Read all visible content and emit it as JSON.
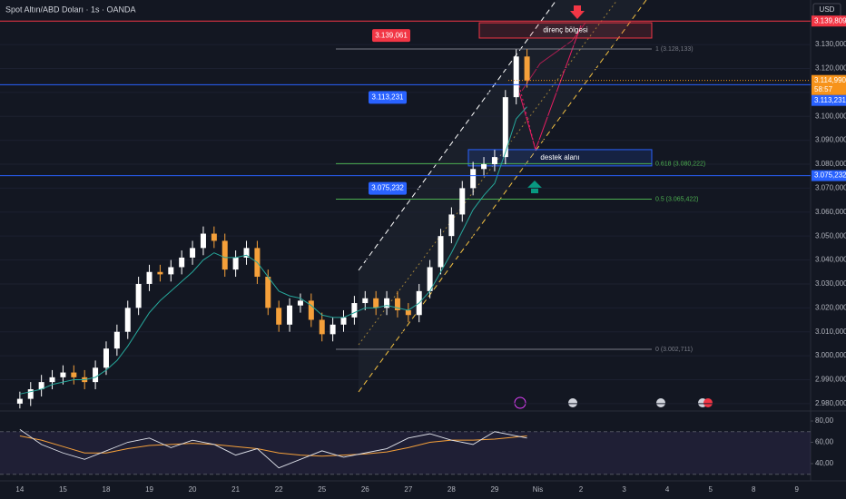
{
  "chart_data": {
    "type": "candlestick",
    "title": "Spot Altın/ABD Doları · 1s · OANDA",
    "currency": "USD",
    "categories": [
      "14",
      "15",
      "18",
      "19",
      "20",
      "21",
      "22",
      "25",
      "26",
      "27",
      "28",
      "29",
      "Nis",
      "2",
      "3",
      "4",
      "5",
      "8",
      "9"
    ],
    "xlim": [
      -0.46,
      18.32
    ],
    "ylim": [
      2977.3,
      3148.6
    ],
    "yticks": [
      {
        "value": 2980,
        "label": "2.980,000"
      },
      {
        "value": 2990,
        "label": "2.990,000"
      },
      {
        "value": 3000,
        "label": "3.000,000"
      },
      {
        "value": 3010,
        "label": "3.010,000"
      },
      {
        "value": 3020,
        "label": "3.020,000"
      },
      {
        "value": 3030,
        "label": "3.030,000"
      },
      {
        "value": 3040,
        "label": "3.040,000"
      },
      {
        "value": 3050,
        "label": "3.050,000"
      },
      {
        "value": 3060,
        "label": "3.060,000"
      },
      {
        "value": 3070,
        "label": "3.070,000"
      },
      {
        "value": 3080,
        "label": "3.080,000"
      },
      {
        "value": 3090,
        "label": "3.090,000"
      },
      {
        "value": 3100,
        "label": "3.100,000"
      },
      {
        "value": 3110,
        "label": "3.110,000"
      },
      {
        "value": 3120,
        "label": "3.120,000"
      },
      {
        "value": 3130,
        "label": "3.130,000"
      }
    ],
    "up_color": "#ffffff",
    "down_color": "#f5a03a",
    "x": [
      0,
      0.25,
      0.5,
      0.75,
      1,
      1.25,
      1.5,
      1.75,
      2,
      2.25,
      2.5,
      2.75,
      3,
      3.25,
      3.5,
      3.75,
      4,
      4.25,
      4.5,
      4.75,
      5,
      5.25,
      5.5,
      5.75,
      6,
      6.25,
      6.5,
      6.75,
      7,
      7.25,
      7.5,
      7.75,
      8,
      8.25,
      8.5,
      8.75,
      9,
      9.25,
      9.5,
      9.75,
      10,
      10.25,
      10.5,
      10.75,
      11,
      11.25,
      11.5,
      11.75
    ],
    "open": [
      2980,
      2982,
      2986,
      2989,
      2991,
      2993,
      2991,
      2989,
      2995,
      3003,
      3010,
      3020,
      3030,
      3035,
      3034,
      3037,
      3041,
      3045,
      3051,
      3048,
      3036,
      3041,
      3045,
      3033,
      3020,
      3013,
      3021,
      3023,
      3015,
      3009,
      3013,
      3016,
      3022,
      3024,
      3020,
      3024,
      3019,
      3017,
      3027,
      3037,
      3050,
      3059,
      3070,
      3078,
      3080,
      3083,
      3108,
      3125
    ],
    "high": [
      2985,
      2989,
      2992,
      2994,
      2996,
      2996,
      2994,
      2998,
      3006,
      3013,
      3023,
      3033,
      3038,
      3038,
      3040,
      3044,
      3048,
      3054,
      3054,
      3051,
      3044,
      3048,
      3048,
      3036,
      3023,
      3024,
      3026,
      3026,
      3018,
      3016,
      3019,
      3025,
      3027,
      3027,
      3027,
      3027,
      3022,
      3030,
      3040,
      3053,
      3062,
      3073,
      3081,
      3083,
      3086,
      3111,
      3128,
      3128
    ],
    "low": [
      2978,
      2979,
      2983,
      2986,
      2988,
      2988,
      2986,
      2986,
      2992,
      3000,
      3007,
      3017,
      3027,
      3031,
      3031,
      3034,
      3038,
      3042,
      3045,
      3033,
      3033,
      3038,
      3030,
      3017,
      3010,
      3010,
      3018,
      3012,
      3006,
      3006,
      3010,
      3013,
      3019,
      3017,
      3017,
      3016,
      3014,
      3014,
      3024,
      3034,
      3047,
      3056,
      3067,
      3075,
      3077,
      3080,
      3105,
      3112
    ],
    "close": [
      2982,
      2986,
      2989,
      2991,
      2993,
      2991,
      2989,
      2995,
      3003,
      3010,
      3020,
      3030,
      3035,
      3034,
      3037,
      3041,
      3045,
      3051,
      3048,
      3036,
      3041,
      3045,
      3033,
      3020,
      3013,
      3021,
      3023,
      3015,
      3009,
      3013,
      3016,
      3022,
      3024,
      3020,
      3024,
      3019,
      3017,
      3027,
      3037,
      3050,
      3059,
      3070,
      3078,
      3080,
      3083,
      3108,
      3125,
      3115
    ],
    "ema": {
      "color": "#26a69a",
      "values": [
        2984,
        2985,
        2986,
        2988,
        2989,
        2990,
        2990,
        2991,
        2994,
        2998,
        3004,
        3011,
        3018,
        3023,
        3027,
        3031,
        3035,
        3040,
        3043,
        3041,
        3041,
        3042,
        3039,
        3033,
        3027,
        3025,
        3024,
        3021,
        3017,
        3016,
        3016,
        3018,
        3020,
        3020,
        3021,
        3020,
        3019,
        3022,
        3027,
        3035,
        3043,
        3052,
        3061,
        3067,
        3072,
        3085,
        3099,
        3104
      ]
    },
    "levels": [
      {
        "value": 3139.809,
        "label": "3.139,809",
        "color": "#f23645"
      },
      {
        "value": 3113.231,
        "label": "3.113,231",
        "color": "#2962ff"
      },
      {
        "value": 3075.232,
        "label": "3.075,232",
        "color": "#2962ff"
      }
    ],
    "tags": [
      {
        "value": 3139.061,
        "label": "3.139,061",
        "color": "#f23645"
      }
    ],
    "fib": [
      {
        "value": 3128.133,
        "label": "1 (3.128,133)",
        "color": "#787b86"
      },
      {
        "value": 3080.222,
        "label": "0.618 (3.080,222)",
        "color": "#4caf50"
      },
      {
        "value": 3065.422,
        "label": "0.5 (3.065,422)",
        "color": "#4caf50"
      },
      {
        "value": 3002.711,
        "label": "0 (3.002,711)",
        "color": "#787b86"
      }
    ],
    "zones": [
      {
        "label": "direnç bölgesi",
        "top": 3139.1,
        "bottom": 3132.7,
        "color": "#f23645"
      },
      {
        "label": "destek alanı",
        "top": 3086.1,
        "bottom": 3079.3,
        "color": "#2962ff"
      }
    ],
    "last_price": {
      "value": 3114.99,
      "label": "3.114,990",
      "countdown": "58:57",
      "color": "#f7931a"
    },
    "rsi": {
      "ylim": [
        23.8,
        87.7
      ],
      "yticks": [
        {
          "value": 80,
          "label": "80,00"
        },
        {
          "value": 60,
          "label": "60,00"
        },
        {
          "value": 40,
          "label": "40,00"
        }
      ],
      "bounds": [
        30,
        70
      ],
      "x": [
        0,
        0.5,
        1,
        1.5,
        2,
        2.5,
        3,
        3.5,
        4,
        4.5,
        5,
        5.5,
        6,
        6.5,
        7,
        7.5,
        8,
        8.5,
        9,
        9.5,
        10,
        10.5,
        11,
        11.5,
        11.75
      ],
      "values": [
        72,
        58,
        50,
        44,
        52,
        60,
        64,
        55,
        62,
        58,
        48,
        54,
        36,
        44,
        52,
        46,
        50,
        54,
        64,
        68,
        62,
        58,
        70,
        66,
        64
      ],
      "ma": [
        66,
        62,
        56,
        50,
        50,
        54,
        57,
        58,
        59,
        58,
        56,
        54,
        50,
        48,
        47,
        48,
        49,
        51,
        55,
        60,
        62,
        62,
        63,
        65,
        66
      ],
      "color": "#e0e3eb",
      "ma_color": "#f5a03a"
    }
  }
}
